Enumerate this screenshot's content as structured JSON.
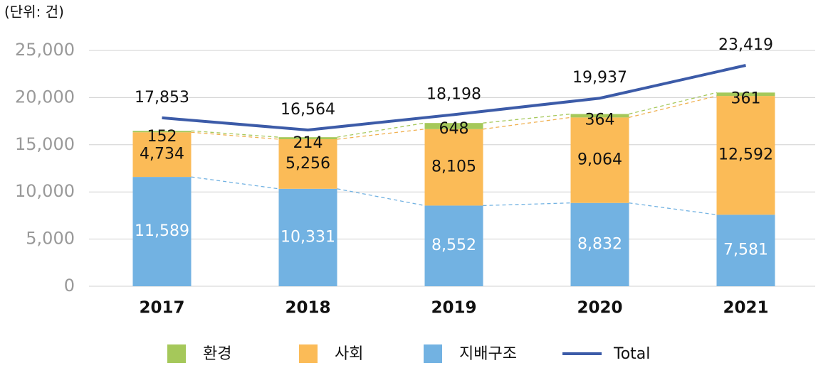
{
  "chart_data": {
    "type": "bar",
    "stacked": true,
    "unit_label": "(단위: 건)",
    "categories": [
      "2017",
      "2018",
      "2019",
      "2020",
      "2021"
    ],
    "series": [
      {
        "name": "환경",
        "type": "bar",
        "color": "#a5c85a",
        "values": [
          152,
          214,
          648,
          364,
          361
        ]
      },
      {
        "name": "사회",
        "type": "bar",
        "color": "#fbbb57",
        "values": [
          4734,
          5256,
          8105,
          9064,
          12592
        ],
        "value_labels": [
          "4,734",
          "5,256",
          "8,105",
          "9,064",
          "12,592"
        ]
      },
      {
        "name": "지배구조",
        "type": "bar",
        "color": "#72b2e2",
        "values": [
          11589,
          10331,
          8552,
          8832,
          7581
        ],
        "value_labels": [
          "11,589",
          "10,331",
          "8,552",
          "8,832",
          "7,581"
        ]
      },
      {
        "name": "Total",
        "type": "line",
        "color": "#3c5ba8",
        "values": [
          17853,
          16564,
          18198,
          19937,
          23419
        ],
        "value_labels": [
          "17,853",
          "16,564",
          "18,198",
          "19,937",
          "23,419"
        ]
      }
    ],
    "ylim": [
      0,
      25000
    ],
    "yticks": [
      0,
      {
        "value": 5000,
        "label": "5,000"
      },
      {
        "value": 10000,
        "label": "10,000"
      },
      {
        "value": 15000,
        "label": "15,000"
      },
      {
        "value": 20000,
        "label": "20,000"
      },
      {
        "value": 25000,
        "label": "25,000"
      }
    ],
    "grid": true
  }
}
